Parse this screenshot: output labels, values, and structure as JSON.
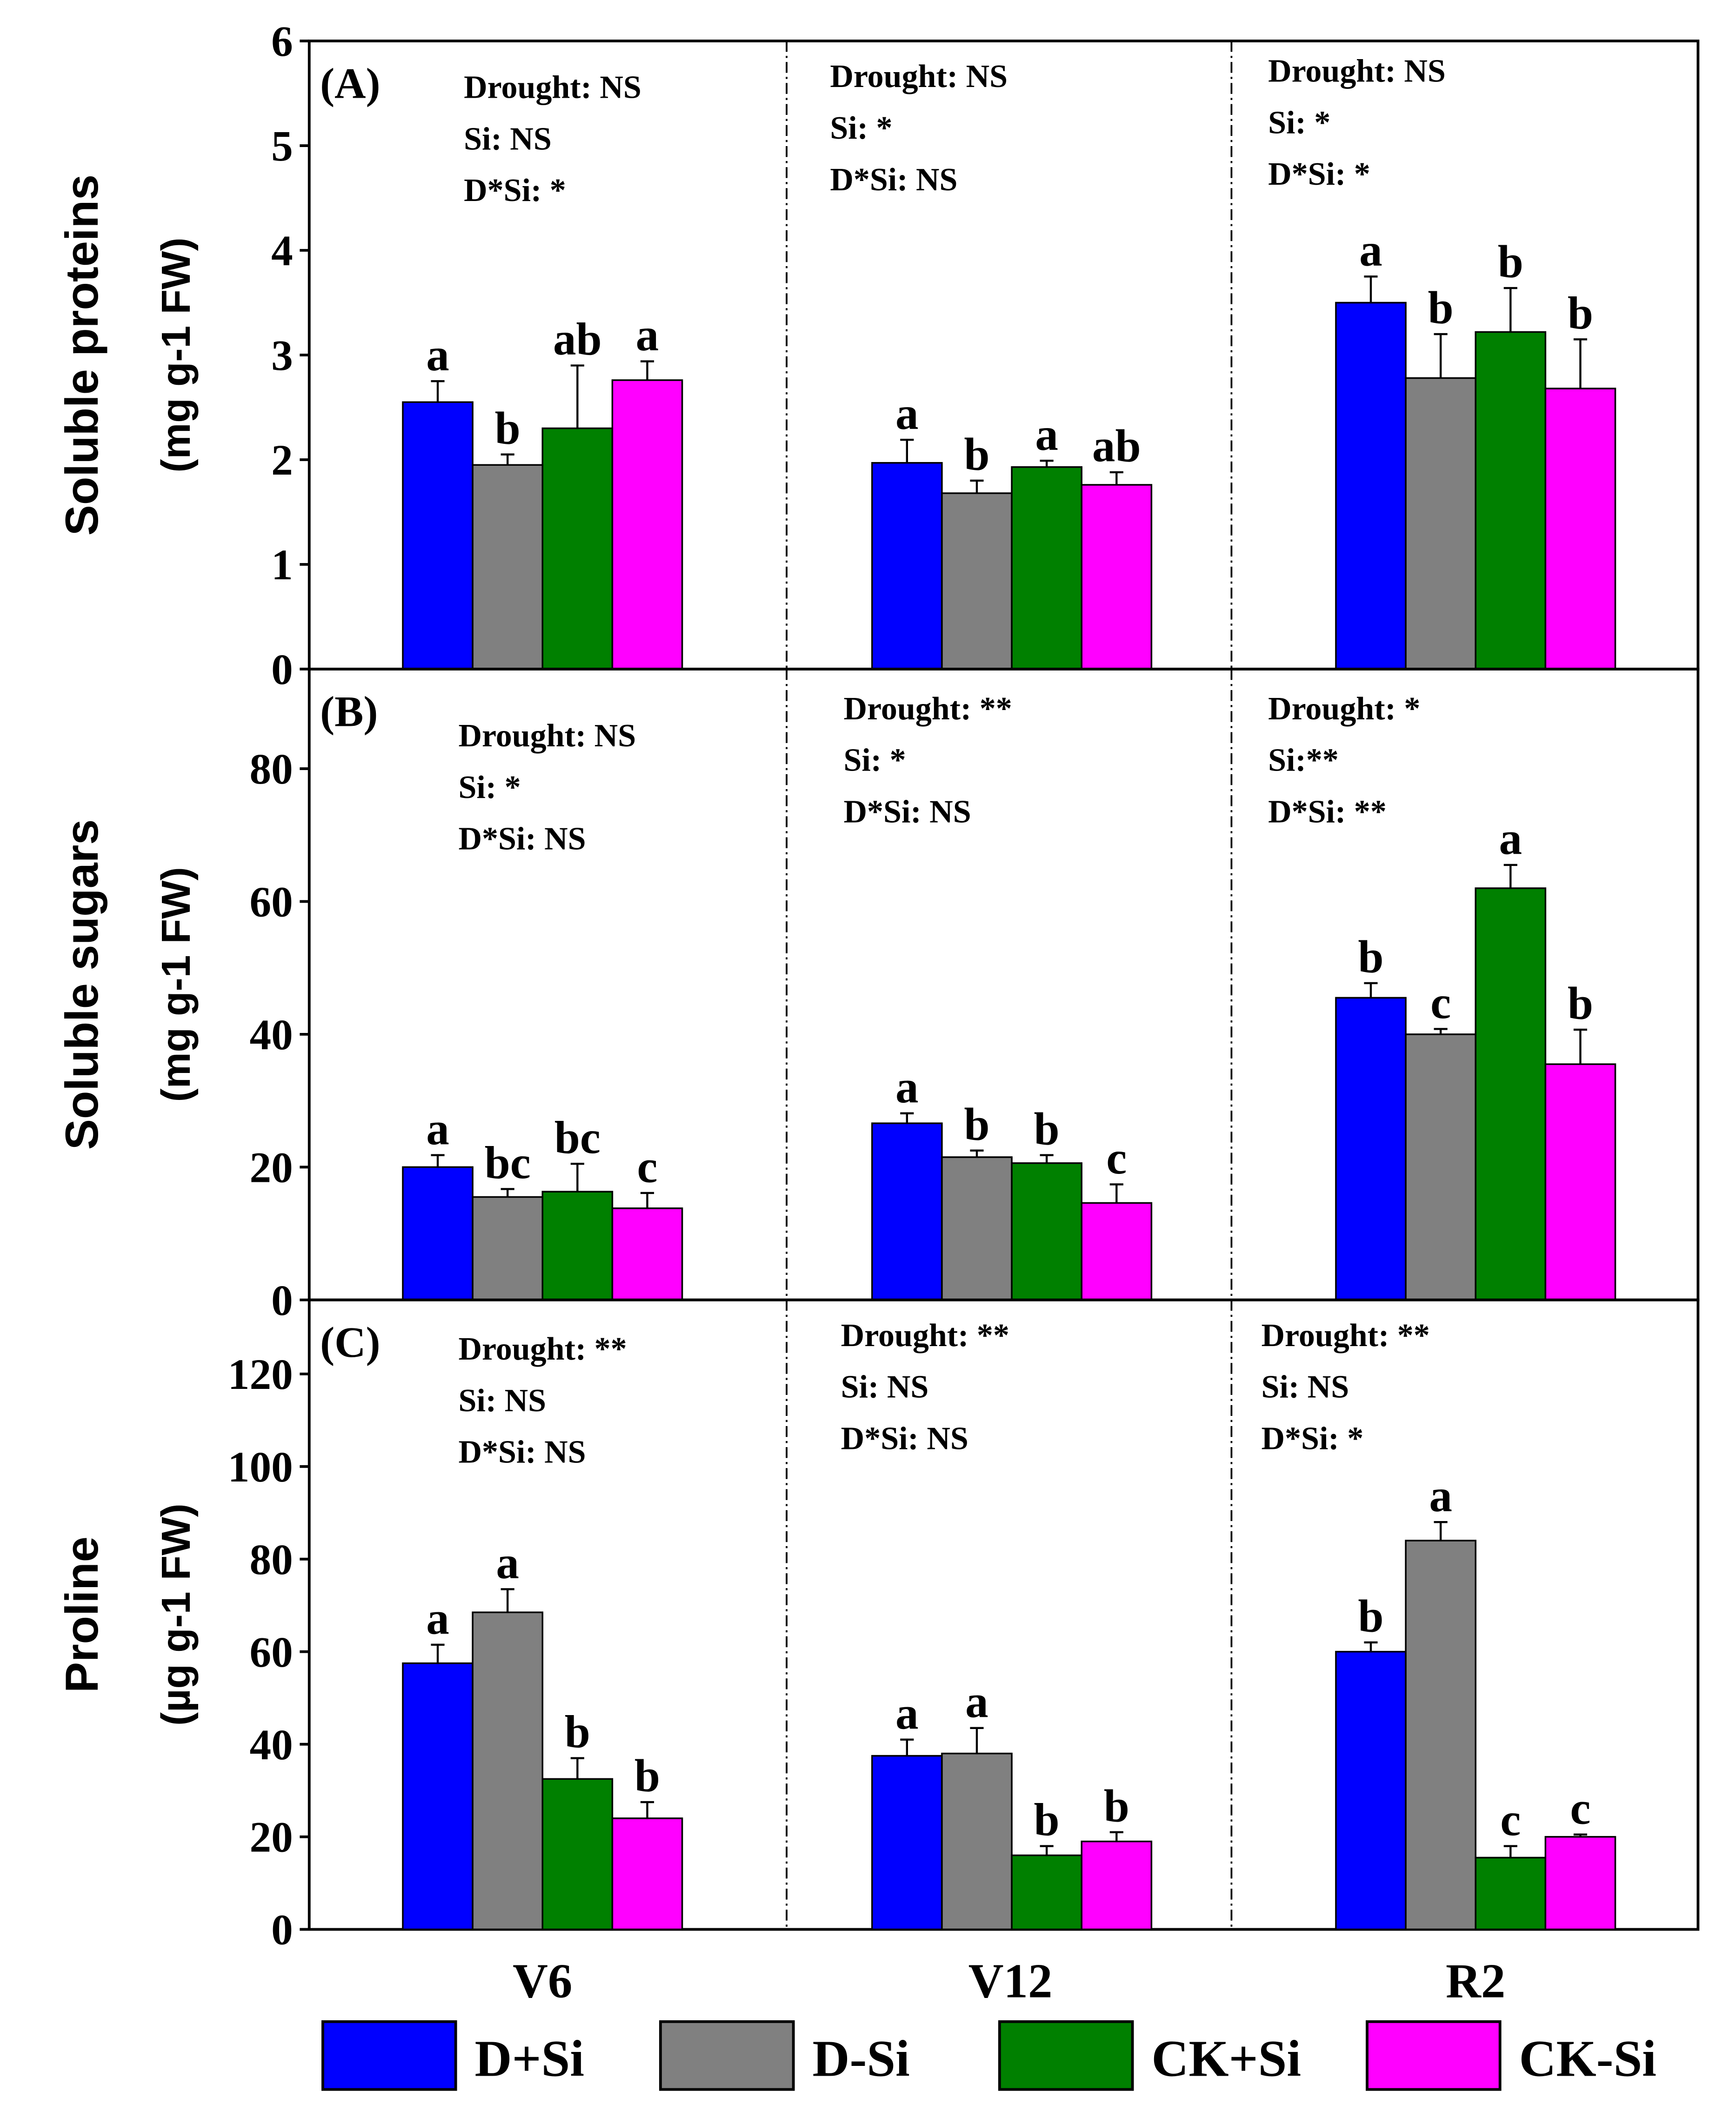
{
  "chart_data": [
    {
      "type": "bar",
      "panel_label": "(A)",
      "ylabel": "Soluble proteins",
      "ylabel_unit": "(mg g-1 FW)",
      "ylim": [
        0,
        6
      ],
      "yticks": [
        0,
        1,
        2,
        3,
        4,
        5,
        6
      ],
      "categories": [
        "V6",
        "V12",
        "R2"
      ],
      "series": [
        {
          "name": "D+Si",
          "values": [
            2.55,
            1.97,
            3.5
          ],
          "errors": [
            0.2,
            0.22,
            0.25
          ],
          "letters": [
            "a",
            "a",
            "a"
          ]
        },
        {
          "name": "D-Si",
          "values": [
            1.95,
            1.68,
            2.78
          ],
          "errors": [
            0.1,
            0.12,
            0.42
          ],
          "letters": [
            "b",
            "b",
            "b"
          ]
        },
        {
          "name": "CK+Si",
          "values": [
            2.3,
            1.93,
            3.22
          ],
          "errors": [
            0.6,
            0.06,
            0.42
          ],
          "letters": [
            "ab",
            "a",
            "b"
          ]
        },
        {
          "name": "CK-Si",
          "values": [
            2.76,
            1.76,
            2.68
          ],
          "errors": [
            0.18,
            0.12,
            0.47
          ],
          "letters": [
            "a",
            "ab",
            "b"
          ]
        }
      ],
      "annotations": [
        [
          "Drought: NS",
          "Si: NS",
          "D*Si: *"
        ],
        [
          "Drought: NS",
          "Si: *",
          "D*Si: NS"
        ],
        [
          "Drought: NS",
          "Si: *",
          "D*Si: *"
        ]
      ]
    },
    {
      "type": "bar",
      "panel_label": "(B)",
      "ylabel": "Soluble sugars",
      "ylabel_unit": "(mg g-1 FW)",
      "ylim": [
        0,
        95
      ],
      "yticks": [
        0,
        20,
        40,
        60,
        80
      ],
      "categories": [
        "V6",
        "V12",
        "R2"
      ],
      "series": [
        {
          "name": "D+Si",
          "values": [
            20,
            26.6,
            45.5
          ],
          "errors": [
            1.8,
            1.5,
            2.2
          ],
          "letters": [
            "a",
            "a",
            "b"
          ]
        },
        {
          "name": "D-Si",
          "values": [
            15.5,
            21.5,
            40
          ],
          "errors": [
            1.2,
            1.0,
            0.8
          ],
          "letters": [
            "bc",
            "b",
            "c"
          ]
        },
        {
          "name": "CK+Si",
          "values": [
            16.3,
            20.6,
            62
          ],
          "errors": [
            4.2,
            1.2,
            3.5
          ],
          "letters": [
            "bc",
            "b",
            "a"
          ]
        },
        {
          "name": "CK-Si",
          "values": [
            13.8,
            14.6,
            35.5
          ],
          "errors": [
            2.3,
            2.8,
            5.2
          ],
          "letters": [
            "c",
            "c",
            "b"
          ]
        }
      ],
      "annotations": [
        [
          "Drought: NS",
          "Si: *",
          "D*Si: NS"
        ],
        [
          "Drought: **",
          "Si: *",
          "D*Si: NS"
        ],
        [
          "Drought: *",
          "Si:**",
          "D*Si: **"
        ]
      ]
    },
    {
      "type": "bar",
      "panel_label": "(C)",
      "ylabel": "Proline",
      "ylabel_unit": "(µg g-1 FW)",
      "ylim": [
        0,
        136
      ],
      "yticks": [
        0,
        20,
        40,
        60,
        80,
        100,
        120
      ],
      "xlabel_categories": [
        "V6",
        "V12",
        "R2"
      ],
      "categories": [
        "V6",
        "V12",
        "R2"
      ],
      "series": [
        {
          "name": "D+Si",
          "values": [
            57.5,
            37.5,
            60
          ],
          "errors": [
            4,
            3.5,
            2
          ],
          "letters": [
            "a",
            "a",
            "b"
          ]
        },
        {
          "name": "D-Si",
          "values": [
            68.5,
            38,
            84
          ],
          "errors": [
            5,
            5.5,
            4
          ],
          "letters": [
            "a",
            "a",
            "a"
          ]
        },
        {
          "name": "CK+Si",
          "values": [
            32.5,
            16,
            15.5
          ],
          "errors": [
            4.5,
            2,
            2.5
          ],
          "letters": [
            "b",
            "b",
            "c"
          ]
        },
        {
          "name": "CK-Si",
          "values": [
            24,
            19,
            20
          ],
          "errors": [
            3.5,
            2,
            0.5
          ],
          "letters": [
            "b",
            "b",
            "c"
          ]
        }
      ],
      "annotations": [
        [
          "Drought: **",
          "Si: NS",
          "D*Si: NS"
        ],
        [
          "Drought: **",
          "Si: NS",
          "D*Si: NS"
        ],
        [
          "Drought: **",
          "Si: NS",
          "D*Si: *"
        ]
      ]
    }
  ],
  "legend": {
    "placement": "bottom",
    "items": [
      {
        "label": "D+Si",
        "color": "#0000ff"
      },
      {
        "label": "D-Si",
        "color": "#808080"
      },
      {
        "label": "CK+Si",
        "color": "#008000"
      },
      {
        "label": "CK-Si",
        "color": "#ff00ff"
      }
    ]
  }
}
